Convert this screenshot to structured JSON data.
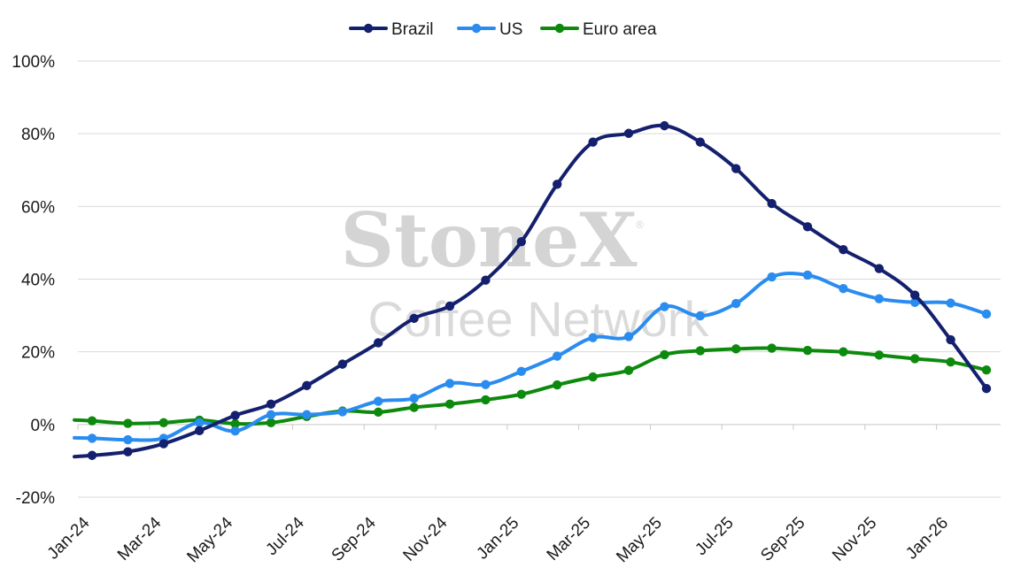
{
  "watermark": {
    "line1": "StoneX",
    "line2": "Coffee Network",
    "mark": "®"
  },
  "colors": {
    "brazil": "#14206e",
    "us": "#2b8cf0",
    "euro": "#0d8a0d",
    "grid": "#d9d9d9",
    "axis": "#c8c8c8"
  },
  "chart_data": {
    "type": "line",
    "title": "",
    "xlabel": "",
    "ylabel": "",
    "ylim": [
      -20,
      100
    ],
    "yticks": [
      "-20%",
      "0%",
      "20%",
      "40%",
      "60%",
      "80%",
      "100%"
    ],
    "ytick_values": [
      -20,
      0,
      20,
      40,
      60,
      80,
      100
    ],
    "grid": "horizontal",
    "legend_position": "top-center",
    "x_tick_labels": [
      "Jan-24",
      "Mar-24",
      "May-24",
      "Jul-24",
      "Sep-24",
      "Nov-24",
      "Jan-25",
      "Mar-25",
      "May-25",
      "Jul-25",
      "Sep-25",
      "Nov-25",
      "Jan-26"
    ],
    "x": [
      "Jan-24",
      "Feb-24",
      "Mar-24",
      "Apr-24",
      "May-24",
      "Jun-24",
      "Jul-24",
      "Aug-24",
      "Sep-24",
      "Oct-24",
      "Nov-24",
      "Dec-24",
      "Jan-25",
      "Feb-25",
      "Mar-25",
      "Apr-25",
      "May-25",
      "Jun-25",
      "Jul-25",
      "Aug-25",
      "Sep-25",
      "Oct-25",
      "Nov-25",
      "Dec-25",
      "Jan-26",
      "Feb-26"
    ],
    "series": [
      {
        "name": "Brazil",
        "color": "#14206e",
        "values": [
          -8.5,
          -7.5,
          -5.3,
          -1.7,
          2.5,
          5.6,
          10.7,
          16.6,
          22.5,
          29.2,
          32.6,
          39.7,
          50.3,
          66.1,
          77.7,
          80.1,
          82.2,
          77.7,
          70.4,
          60.8,
          54.4,
          48.1,
          42.9,
          35.6,
          23.3,
          9.9
        ]
      },
      {
        "name": "US",
        "color": "#2b8cf0",
        "values": [
          -3.8,
          -4.2,
          -3.8,
          0.5,
          -1.8,
          2.7,
          2.7,
          3.5,
          6.4,
          7.2,
          11.3,
          11.0,
          14.6,
          18.8,
          23.9,
          24.2,
          32.4,
          29.9,
          33.3,
          40.6,
          41.1,
          37.4,
          34.6,
          33.6,
          33.4,
          30.4
        ]
      },
      {
        "name": "Euro area",
        "color": "#0d8a0d",
        "values": [
          1.0,
          0.3,
          0.5,
          1.2,
          0.2,
          0.5,
          2.2,
          3.7,
          3.4,
          4.7,
          5.6,
          6.8,
          8.3,
          10.9,
          13.1,
          14.9,
          19.2,
          20.3,
          20.8,
          21.0,
          20.4,
          20.0,
          19.1,
          18.1,
          17.2,
          15.0
        ]
      }
    ]
  }
}
